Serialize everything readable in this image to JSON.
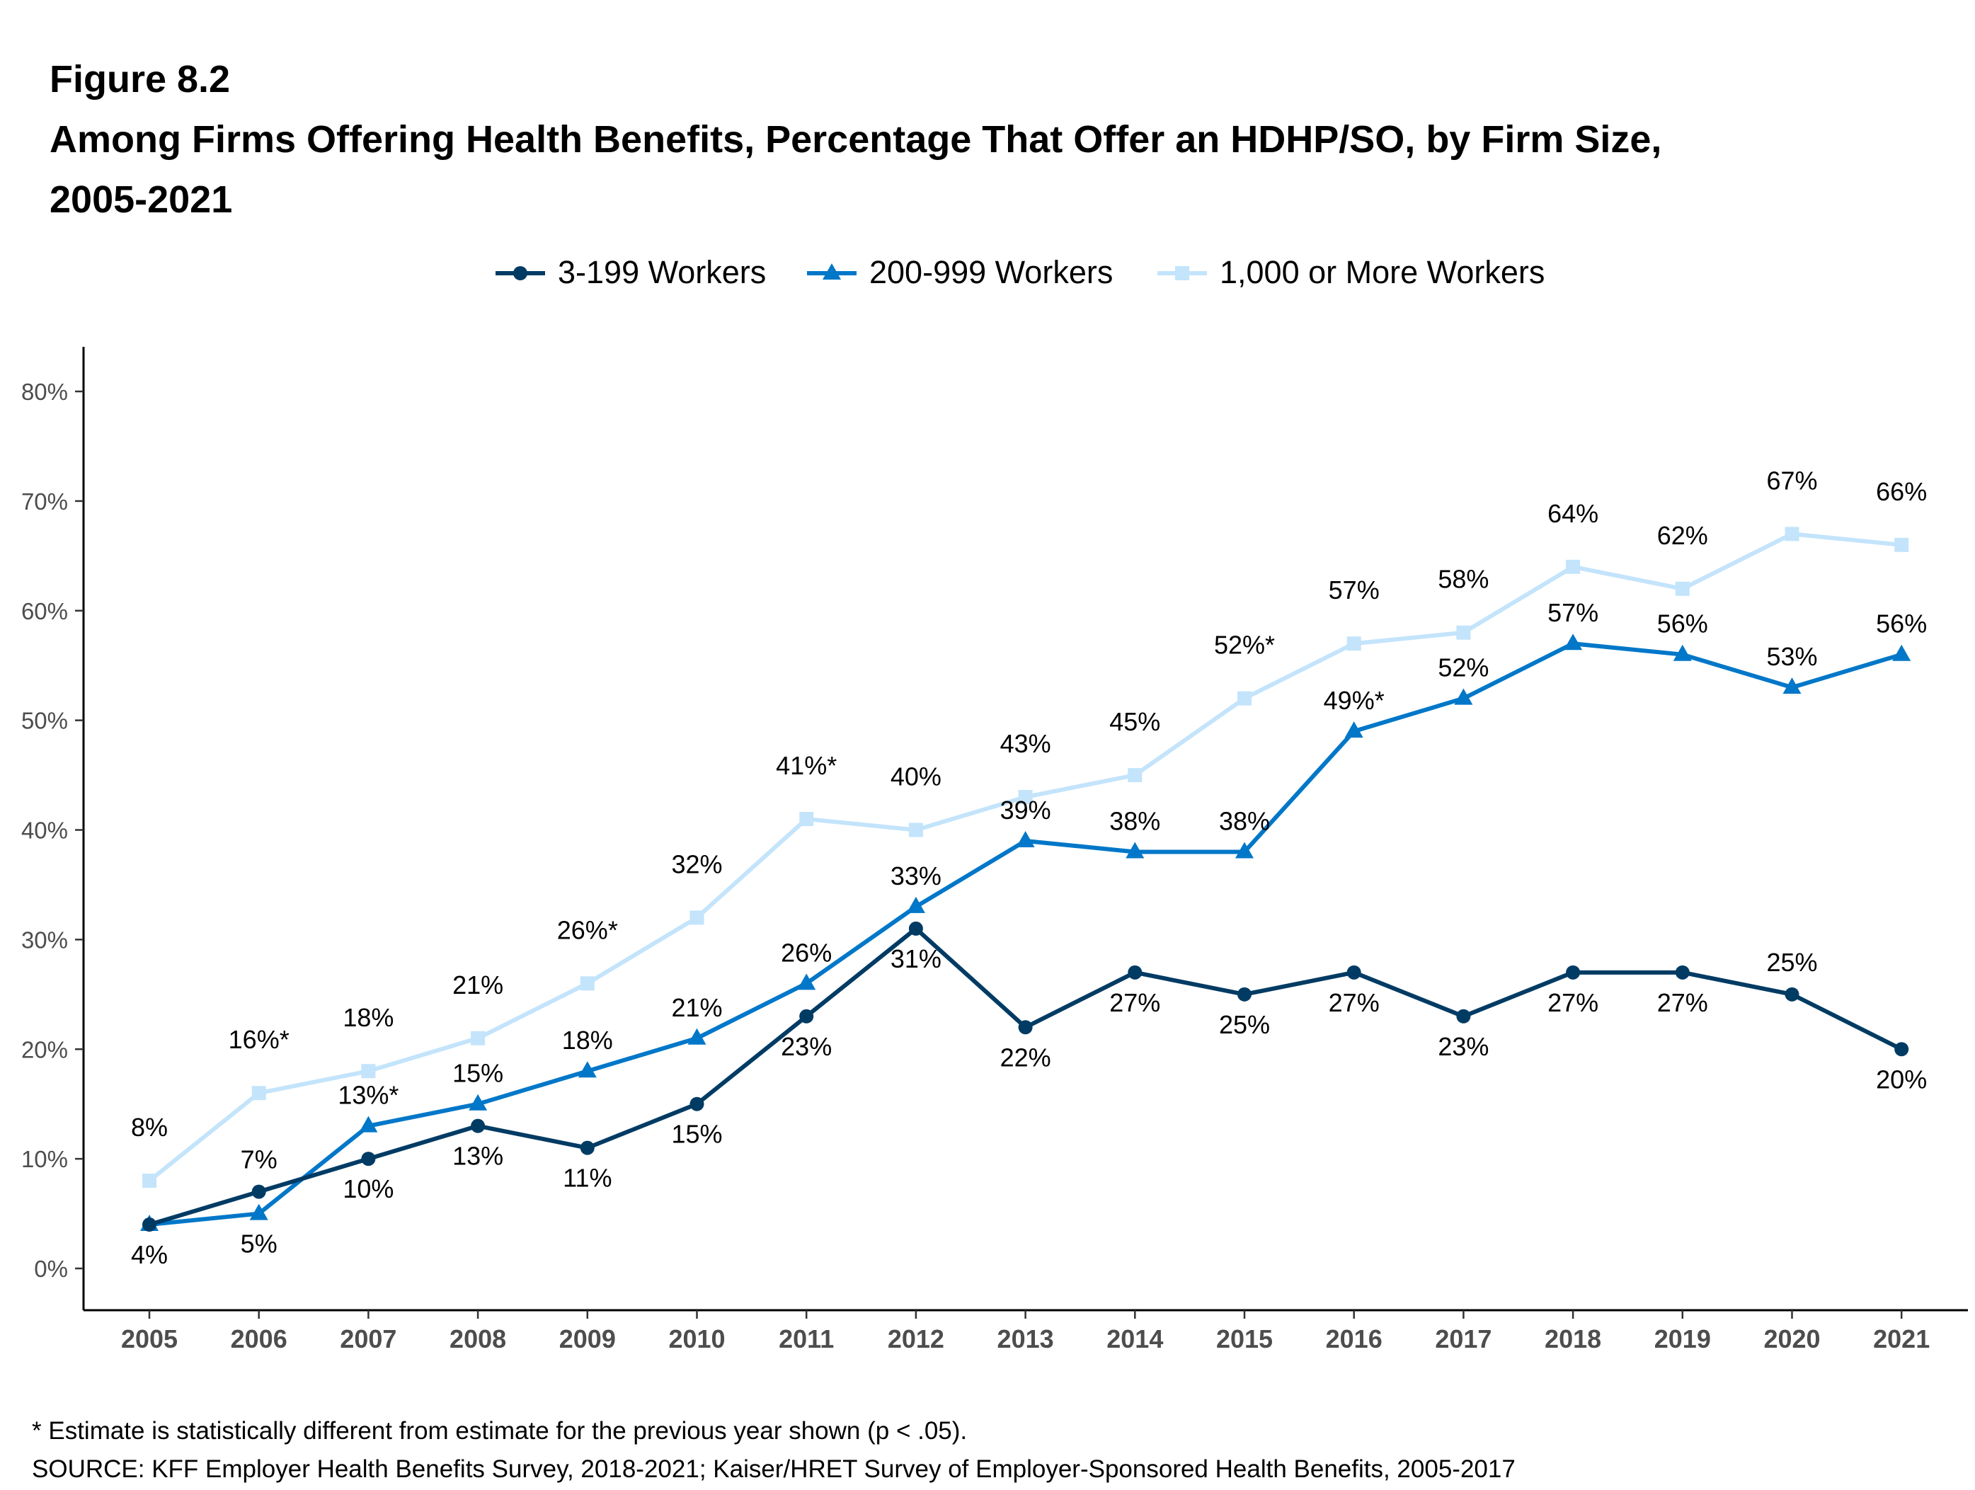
{
  "figure_label": "Figure 8.2",
  "title_line1": "Among Firms Offering Health Benefits, Percentage That Offer an HDHP/SO, by Firm Size,",
  "title_line2": "2005-2021",
  "footnote": "* Estimate is statistically different from estimate for the previous year shown (p < .05).",
  "source": "SOURCE: KFF Employer Health Benefits Survey, 2018-2021; Kaiser/HRET Survey of Employer-Sponsored Health Benefits, 2005-2017",
  "chart_data": {
    "type": "line",
    "x": [
      "2005",
      "2006",
      "2007",
      "2008",
      "2009",
      "2010",
      "2011",
      "2012",
      "2013",
      "2014",
      "2015",
      "2016",
      "2017",
      "2018",
      "2019",
      "2020",
      "2021"
    ],
    "ylim": [
      0,
      80
    ],
    "yticks": [
      "0%",
      "10%",
      "20%",
      "30%",
      "40%",
      "50%",
      "60%",
      "70%",
      "80%"
    ],
    "grid": false,
    "legend_position": "top",
    "series": [
      {
        "name": "3-199 Workers",
        "color": "#003b64",
        "marker": "circle",
        "values": [
          4,
          7,
          10,
          13,
          11,
          15,
          23,
          31,
          22,
          27,
          25,
          27,
          23,
          27,
          27,
          25,
          20
        ],
        "labels": [
          "4%",
          "7%",
          "10%",
          "13%",
          "11%",
          "15%",
          "23%",
          "31%",
          "22%",
          "27%",
          "25%",
          "27%",
          "23%",
          "27%",
          "27%",
          "25%",
          "20%"
        ]
      },
      {
        "name": "200-999 Workers",
        "color": "#0077c8",
        "marker": "triangle",
        "values": [
          4,
          5,
          13,
          15,
          18,
          21,
          26,
          33,
          39,
          38,
          38,
          49,
          52,
          57,
          56,
          53,
          56
        ],
        "labels": [
          "",
          "5%",
          "13%*",
          "15%",
          "18%",
          "21%",
          "26%",
          "33%",
          "39%",
          "38%",
          "38%",
          "49%*",
          "52%",
          "57%",
          "56%",
          "53%",
          "56%"
        ]
      },
      {
        "name": "1,000 or More Workers",
        "color": "#c3e4fb",
        "marker": "square",
        "values": [
          8,
          16,
          18,
          21,
          26,
          32,
          41,
          40,
          43,
          45,
          52,
          57,
          58,
          64,
          62,
          67,
          66
        ],
        "labels": [
          "8%",
          "16%*",
          "18%",
          "21%",
          "26%*",
          "32%",
          "41%*",
          "40%",
          "43%",
          "45%",
          "52%*",
          "57%",
          "58%",
          "64%",
          "62%",
          "67%",
          "66%"
        ]
      }
    ]
  }
}
